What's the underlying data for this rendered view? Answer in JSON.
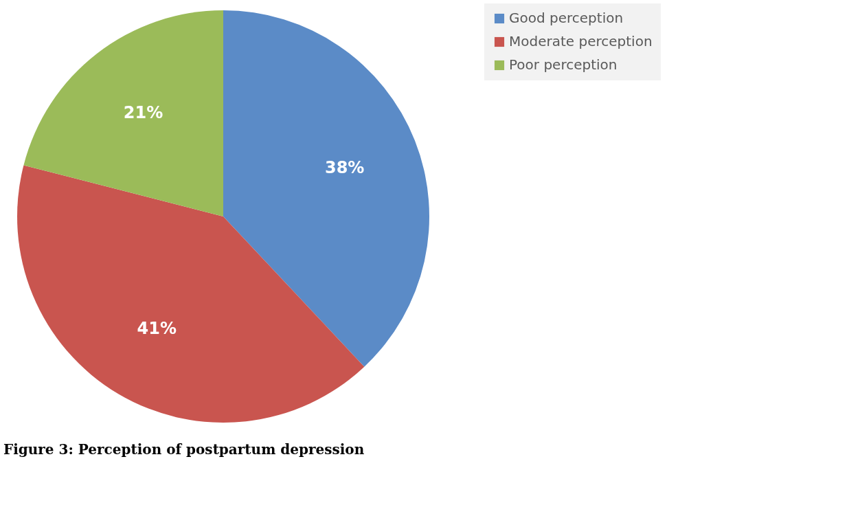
{
  "chart_data": {
    "type": "pie",
    "title": "Figure 3: Perception of postpartum depression",
    "categories": [
      "Good perception",
      "Moderate perception",
      "Poor perception"
    ],
    "values": [
      38,
      41,
      21
    ],
    "colors": [
      "#5b8bc7",
      "#c9554f",
      "#9bbb59"
    ],
    "value_labels": [
      "38%",
      "41%",
      "21%"
    ],
    "legend": "right"
  }
}
